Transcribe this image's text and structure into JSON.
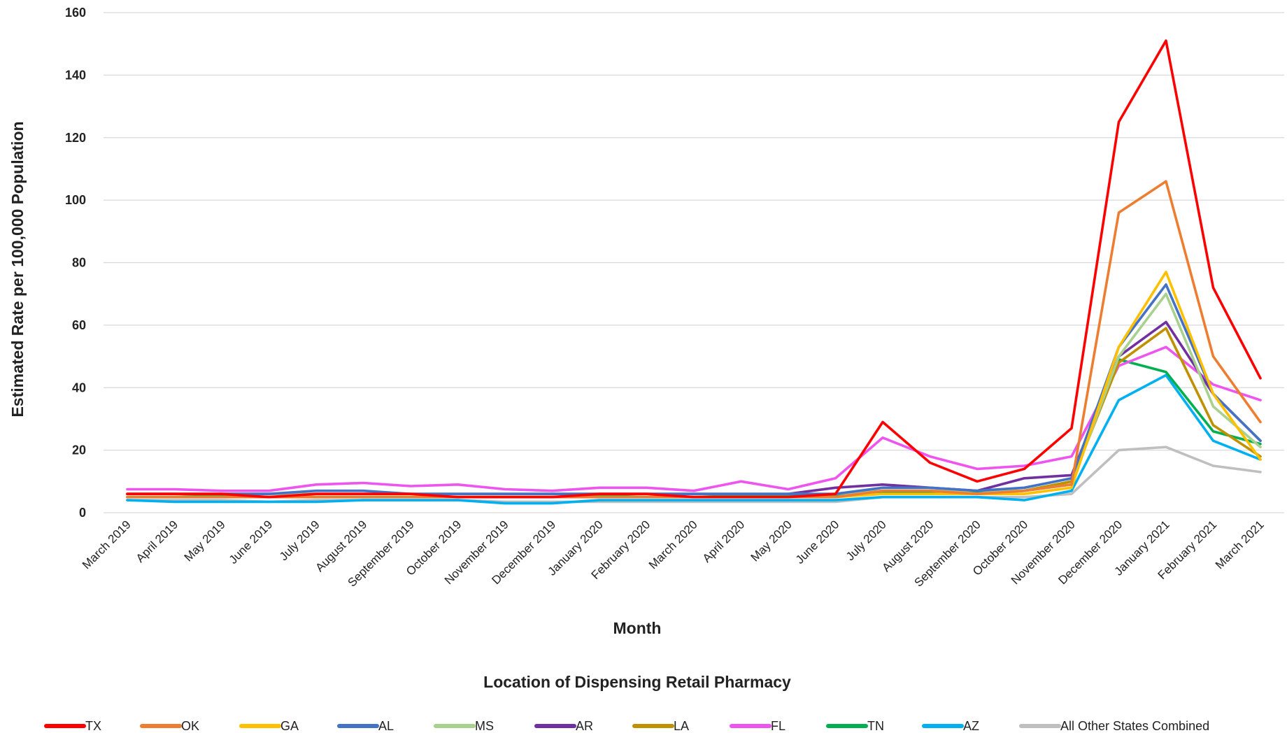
{
  "chart_data": {
    "type": "line",
    "title": "",
    "xlabel": "Month",
    "ylabel": "Estimated Rate per 100,000 Population",
    "legend_title": "Location of Dispensing Retail Pharmacy",
    "legend_position": "bottom",
    "ylim": [
      0,
      160
    ],
    "yticks": [
      0,
      20,
      40,
      60,
      80,
      100,
      120,
      140,
      160
    ],
    "grid": true,
    "categories": [
      "March 2019",
      "April 2019",
      "May 2019",
      "June 2019",
      "July 2019",
      "August 2019",
      "September 2019",
      "October 2019",
      "November 2019",
      "December 2019",
      "January 2020",
      "February 2020",
      "March 2020",
      "April 2020",
      "May 2020",
      "June 2020",
      "July 2020",
      "August 2020",
      "September 2020",
      "October 2020",
      "November 2020",
      "December 2020",
      "January 2021",
      "February 2021",
      "March 2021"
    ],
    "series": [
      {
        "name": "TX",
        "color": "#ff0000",
        "values": [
          6,
          6,
          6,
          5,
          6,
          6,
          6,
          5,
          5,
          5,
          6,
          6,
          5,
          5,
          5,
          6,
          29,
          16,
          10,
          14,
          27,
          125,
          151,
          72,
          43
        ]
      },
      {
        "name": "OK",
        "color": "#ed7d31",
        "values": [
          5,
          5,
          5,
          5,
          5,
          5,
          5,
          5,
          5,
          5,
          5,
          5,
          5,
          5,
          5,
          5,
          7,
          7,
          6,
          7,
          9,
          96,
          106,
          50,
          29
        ]
      },
      {
        "name": "GA",
        "color": "#ffc000",
        "values": [
          5,
          5,
          5,
          5,
          5,
          5,
          5,
          5,
          5,
          5,
          5,
          5,
          5,
          5,
          5,
          5,
          6,
          6,
          6,
          6,
          8,
          53,
          77,
          38,
          17
        ]
      },
      {
        "name": "AL",
        "color": "#4472c4",
        "values": [
          6,
          6,
          6,
          6,
          7,
          7,
          6,
          6,
          6,
          6,
          6,
          6,
          6,
          6,
          6,
          6,
          8,
          8,
          7,
          8,
          11,
          53,
          73,
          38,
          23
        ]
      },
      {
        "name": "MS",
        "color": "#a9d18e",
        "values": [
          6,
          6,
          6,
          6,
          6,
          6,
          6,
          6,
          6,
          6,
          6,
          6,
          6,
          6,
          6,
          6,
          7,
          7,
          7,
          7,
          9,
          50,
          70,
          34,
          21
        ]
      },
      {
        "name": "AR",
        "color": "#7030a0",
        "values": [
          6,
          6,
          6,
          6,
          6,
          6,
          6,
          6,
          6,
          6,
          6,
          6,
          6,
          6,
          6,
          8,
          9,
          8,
          7,
          11,
          12,
          50,
          61,
          38,
          23
        ]
      },
      {
        "name": "LA",
        "color": "#bf9000",
        "values": [
          5,
          5,
          5,
          5,
          5,
          5,
          5,
          5,
          5,
          5,
          5,
          5,
          5,
          5,
          5,
          5,
          7,
          7,
          6,
          7,
          10,
          48,
          59,
          28,
          18
        ]
      },
      {
        "name": "FL",
        "color": "#ee55ee",
        "values": [
          7.5,
          7.5,
          7,
          7,
          9,
          9.5,
          8.5,
          9,
          7.5,
          7,
          8,
          8,
          7,
          10,
          7.5,
          11,
          24,
          18,
          14,
          15,
          18,
          47,
          53,
          41,
          36
        ]
      },
      {
        "name": "TN",
        "color": "#00b050",
        "values": [
          6,
          6,
          5.5,
          5,
          5,
          5,
          5,
          5,
          5,
          5,
          5.5,
          5,
          5,
          5.5,
          5.5,
          5.5,
          6.5,
          6.5,
          6.5,
          7,
          10,
          49,
          45,
          26,
          22
        ]
      },
      {
        "name": "AZ",
        "color": "#00b0f0",
        "values": [
          4,
          3.5,
          3.5,
          3.5,
          3.5,
          4,
          4,
          4,
          3,
          3,
          4,
          4,
          4,
          4,
          4,
          4,
          5,
          5,
          5,
          4,
          7,
          36,
          44,
          23,
          17
        ]
      },
      {
        "name": "All Other States Combined",
        "color": "#bfbfbf",
        "values": [
          4,
          4,
          4,
          3.5,
          4,
          4,
          4,
          4,
          3.5,
          3.5,
          3.5,
          3.5,
          3.5,
          3.5,
          3.5,
          3.5,
          5,
          5,
          5,
          5,
          6,
          20,
          21,
          15,
          13
        ]
      }
    ]
  }
}
